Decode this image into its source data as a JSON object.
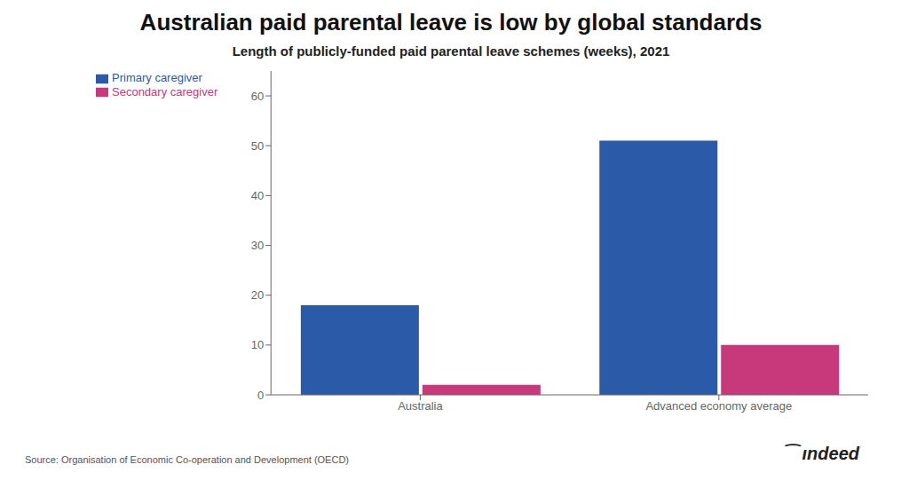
{
  "chart_data": {
    "type": "bar",
    "title": "Australian paid parental leave is low by global standards",
    "subtitle": "Length of publicly-funded paid parental leave schemes (weeks), 2021",
    "source": "Source: Organisation of Economic Co-operation and Development (OECD)",
    "annotations": [
      "⁀",
      "ındeed"
    ],
    "categories": [
      "Australia",
      "Advanced economy average"
    ],
    "series": [
      {
        "name": "Primary caregiver",
        "color": "#2B5BA8",
        "values": [
          18,
          51
        ]
      },
      {
        "name": "Secondary caregiver",
        "color": "#C7397A",
        "values": [
          2,
          10
        ]
      }
    ],
    "ylim": [
      0,
      65
    ],
    "yticks": [
      0,
      10,
      20,
      30,
      40,
      50,
      60
    ],
    "grid": false,
    "legend": "upper left"
  }
}
